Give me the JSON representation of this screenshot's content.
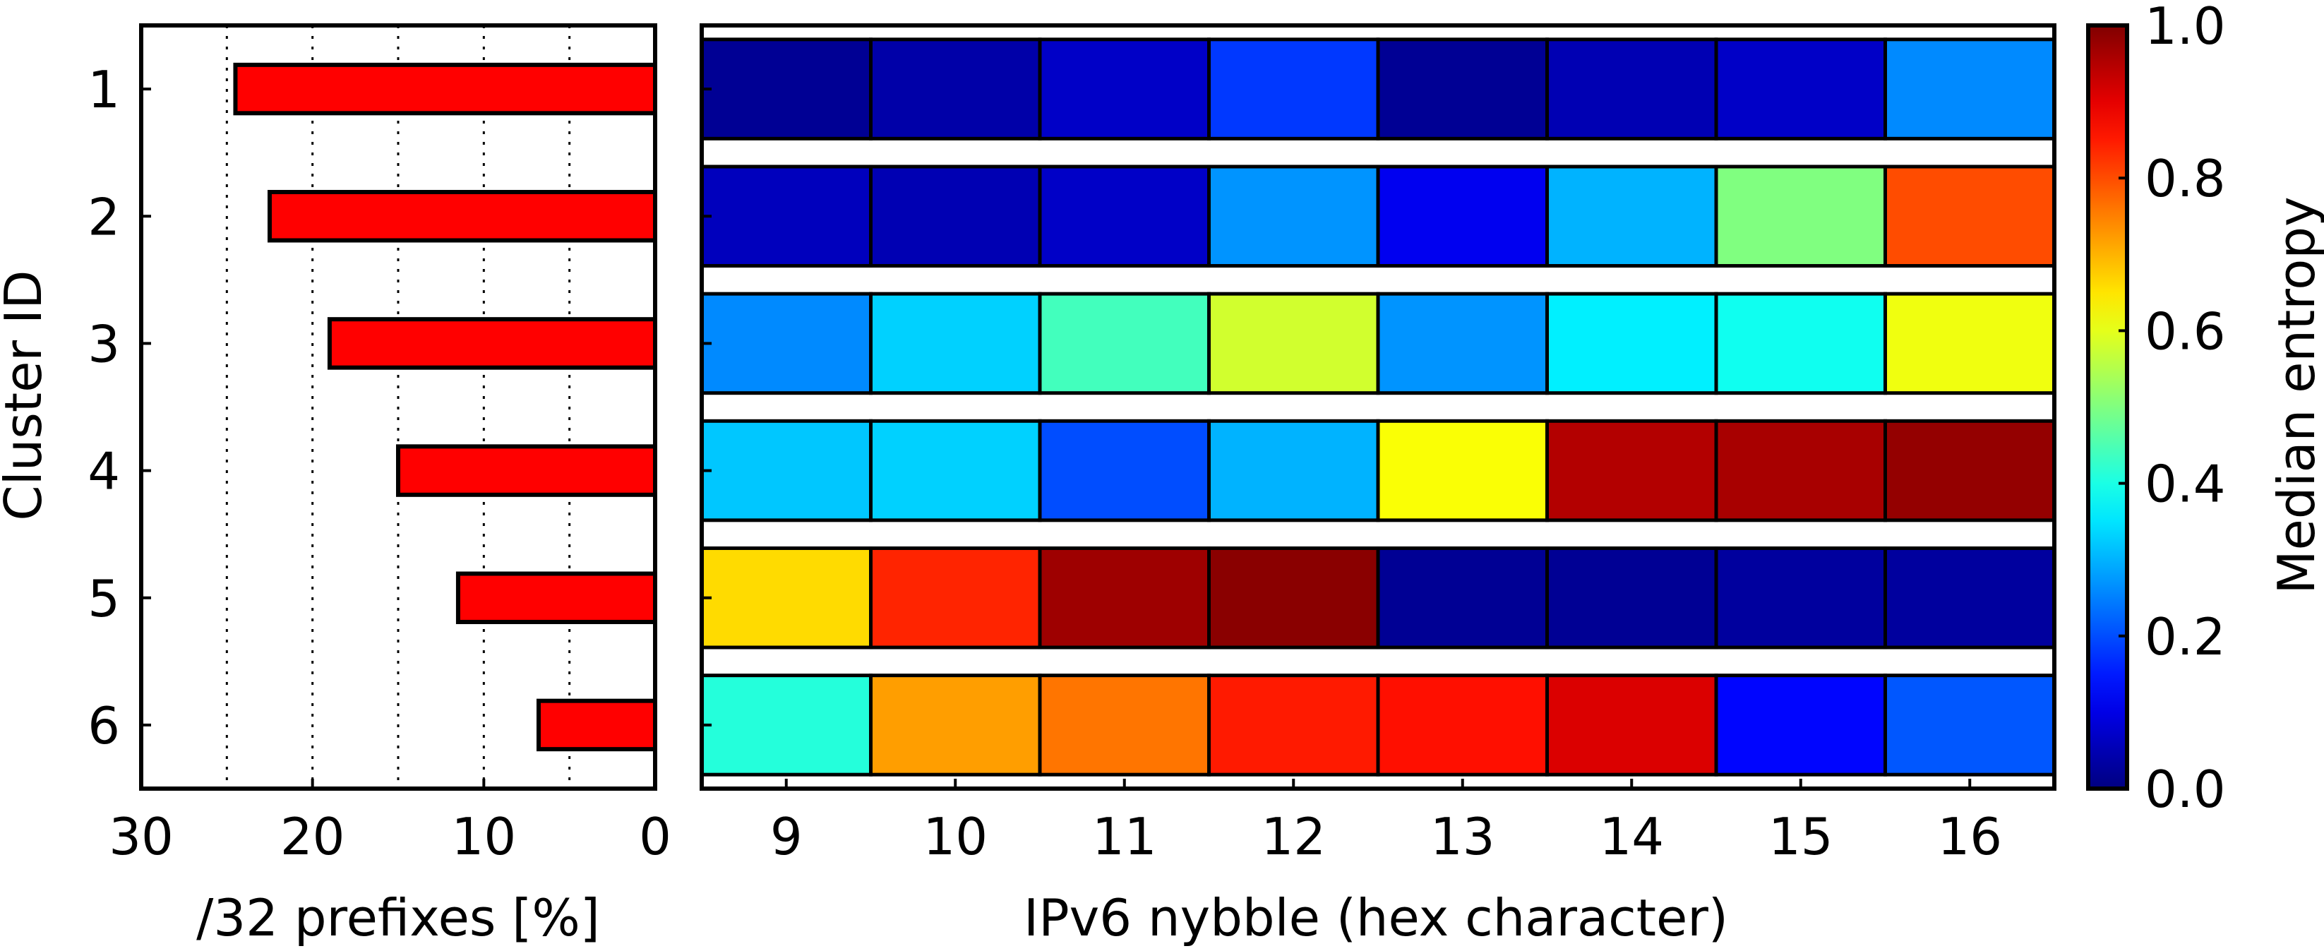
{
  "chart_data": [
    {
      "type": "bar",
      "orientation": "horizontal",
      "categories": [
        "1",
        "2",
        "3",
        "4",
        "5",
        "6"
      ],
      "values": [
        24.5,
        22.5,
        19.0,
        15.0,
        11.5,
        6.8
      ],
      "xlabel": "/32 prefixes [%]",
      "ylabel": "Cluster ID",
      "xlim": [
        30,
        0
      ],
      "xticks": [
        "30",
        "20",
        "10",
        "0"
      ],
      "grid_x": [
        25,
        20,
        15,
        10,
        5
      ],
      "bar_color": "#ff0000",
      "grid": "dotted vertical"
    },
    {
      "type": "heatmap",
      "xlabel": "IPv6 nybble (hex character)",
      "x": [
        "9",
        "10",
        "11",
        "12",
        "13",
        "14",
        "15",
        "16"
      ],
      "y": [
        "1",
        "2",
        "3",
        "4",
        "5",
        "6"
      ],
      "values": [
        [
          0.02,
          0.04,
          0.07,
          0.18,
          0.02,
          0.05,
          0.07,
          0.26
        ],
        [
          0.06,
          0.05,
          0.07,
          0.27,
          0.11,
          0.3,
          0.5,
          0.8
        ],
        [
          0.26,
          0.33,
          0.44,
          0.58,
          0.27,
          0.36,
          0.39,
          0.61
        ],
        [
          0.32,
          0.33,
          0.2,
          0.3,
          0.62,
          0.95,
          0.96,
          0.98
        ],
        [
          0.66,
          0.84,
          0.97,
          0.99,
          0.02,
          0.02,
          0.03,
          0.03
        ],
        [
          0.41,
          0.72,
          0.76,
          0.85,
          0.86,
          0.91,
          0.13,
          0.21
        ]
      ],
      "colormap": "jet",
      "colorbar": {
        "label": "Median entropy",
        "range": [
          0.0,
          1.0
        ],
        "ticks": [
          "0.0",
          "0.2",
          "0.4",
          "0.6",
          "0.8",
          "1.0"
        ]
      }
    }
  ]
}
